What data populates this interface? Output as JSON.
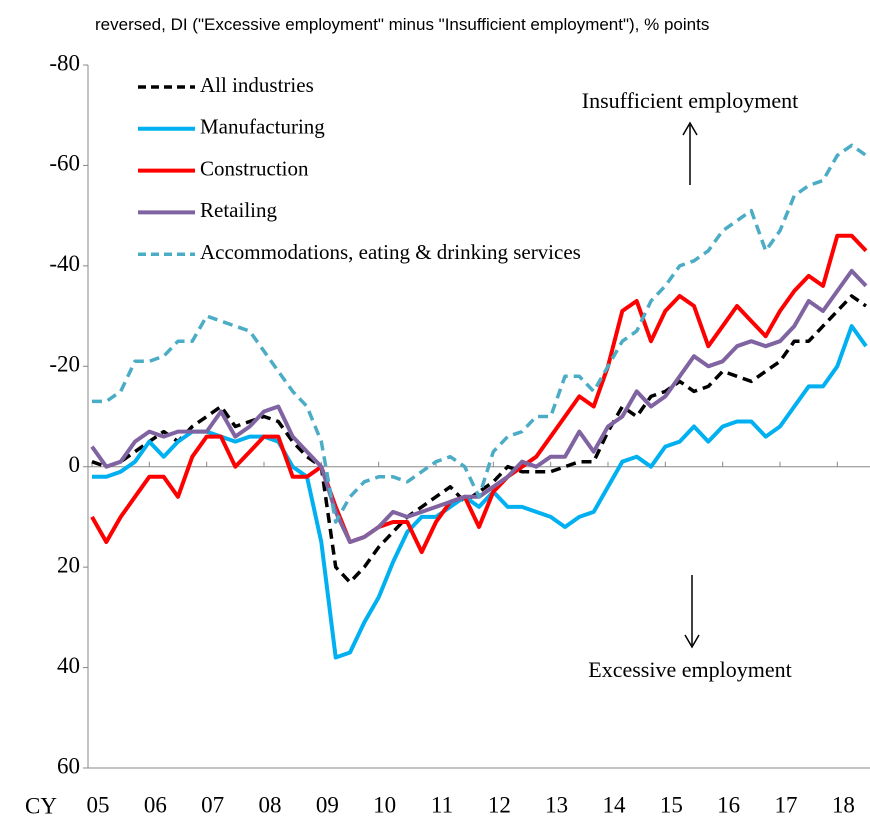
{
  "chart_data": {
    "type": "line",
    "subtitle": "reversed, DI (\"Excessive employment\" minus \"Insufficient employment\"), % points",
    "xlabel": "CY",
    "x": [
      2005,
      2005.25,
      2005.5,
      2005.75,
      2006,
      2006.25,
      2006.5,
      2006.75,
      2007,
      2007.25,
      2007.5,
      2007.75,
      2008,
      2008.25,
      2008.5,
      2008.75,
      2009,
      2009.25,
      2009.5,
      2009.75,
      2010,
      2010.25,
      2010.5,
      2010.75,
      2011,
      2011.25,
      2011.5,
      2011.75,
      2012,
      2012.25,
      2012.5,
      2012.75,
      2013,
      2013.25,
      2013.5,
      2013.75,
      2014,
      2014.25,
      2014.5,
      2014.75,
      2015,
      2015.25,
      2015.5,
      2015.75,
      2016,
      2016.25,
      2016.5,
      2016.75,
      2017,
      2017.25,
      2017.5,
      2017.75,
      2018,
      2018.25,
      2018.5
    ],
    "xlim": [
      2005,
      2018.5
    ],
    "xticks": [
      {
        "value": 2005,
        "label": "05"
      },
      {
        "value": 2006,
        "label": "06"
      },
      {
        "value": 2007,
        "label": "07"
      },
      {
        "value": 2008,
        "label": "08"
      },
      {
        "value": 2009,
        "label": "09"
      },
      {
        "value": 2010,
        "label": "10"
      },
      {
        "value": 2011,
        "label": "11"
      },
      {
        "value": 2012,
        "label": "12"
      },
      {
        "value": 2013,
        "label": "13"
      },
      {
        "value": 2014,
        "label": "14"
      },
      {
        "value": 2015,
        "label": "15"
      },
      {
        "value": 2016,
        "label": "16"
      },
      {
        "value": 2017,
        "label": "17"
      },
      {
        "value": 2018,
        "label": "18"
      }
    ],
    "ylim": [
      -80,
      60
    ],
    "y_inverted": true,
    "yticks": [
      -80,
      -60,
      -40,
      -20,
      0,
      20,
      40,
      60
    ],
    "series": [
      {
        "name": "All industries",
        "color": "#000000",
        "dash": true,
        "values": [
          -1,
          0,
          -1,
          -3,
          -5,
          -7,
          -5,
          -8,
          -10,
          -12,
          -8,
          -9,
          -10,
          -9,
          -5,
          -2,
          0,
          20,
          23,
          20,
          16,
          13,
          10,
          8,
          6,
          4,
          7,
          5,
          3,
          0,
          1,
          1,
          1,
          0,
          -1,
          -1,
          -7,
          -12,
          -10,
          -14,
          -15,
          -17,
          -15,
          -16,
          -19,
          -18,
          -17,
          -19,
          -21,
          -25,
          -25,
          -28,
          -31,
          -34,
          -32
        ]
      },
      {
        "name": "Manufacturing",
        "color": "#00b0f0",
        "dash": false,
        "values": [
          2,
          2,
          1,
          -1,
          -5,
          -2,
          -5,
          -7,
          -7,
          -6,
          -5,
          -6,
          -6,
          -5,
          0,
          2,
          15,
          38,
          37,
          31,
          26,
          19,
          13,
          10,
          10,
          8,
          6,
          8,
          5,
          8,
          8,
          9,
          10,
          12,
          10,
          9,
          4,
          -1,
          -2,
          0,
          -4,
          -5,
          -8,
          -5,
          -8,
          -9,
          -9,
          -6,
          -8,
          -12,
          -16,
          -16,
          -20,
          -28,
          -24
        ]
      },
      {
        "name": "Construction",
        "color": "#ff0000",
        "dash": false,
        "values": [
          10,
          15,
          10,
          6,
          2,
          2,
          6,
          -2,
          -6,
          -6,
          0,
          -3,
          -6,
          -6,
          2,
          2,
          0,
          8,
          15,
          14,
          12,
          11,
          11,
          17,
          11,
          7,
          6,
          12,
          5,
          2,
          0,
          -2,
          -6,
          -10,
          -14,
          -12,
          -20,
          -31,
          -33,
          -25,
          -31,
          -34,
          -32,
          -24,
          -28,
          -32,
          -29,
          -26,
          -31,
          -35,
          -38,
          -36,
          -46,
          -46,
          -43
        ]
      },
      {
        "name": "Retailing",
        "color": "#8064a2",
        "dash": false,
        "values": [
          -4,
          0,
          -1,
          -5,
          -7,
          -6,
          -7,
          -7,
          -7,
          -11,
          -6,
          -8,
          -11,
          -12,
          -6,
          -3,
          0,
          9,
          15,
          14,
          12,
          9,
          10,
          9,
          8,
          7,
          6,
          6,
          4,
          2,
          -1,
          0,
          -2,
          -2,
          -7,
          -3,
          -8,
          -10,
          -15,
          -12,
          -14,
          -18,
          -22,
          -20,
          -21,
          -24,
          -25,
          -24,
          -25,
          -28,
          -33,
          -31,
          -35,
          -39,
          -36
        ]
      },
      {
        "name": "Accommodations, eating & drinking services",
        "color": "#4bacc6",
        "dash": true,
        "values": [
          -13,
          -13,
          -15,
          -21,
          -21,
          -22,
          -25,
          -25,
          -30,
          -29,
          -28,
          -27,
          -23,
          -19,
          -15,
          -12,
          -5,
          11,
          6,
          3,
          2,
          2,
          3,
          1,
          -1,
          -2,
          0,
          6,
          -3,
          -6,
          -7,
          -10,
          -10,
          -18,
          -18,
          -15,
          -20,
          -25,
          -27,
          -33,
          -36,
          -40,
          -41,
          -43,
          -47,
          -49,
          -51,
          -43,
          -47,
          -54,
          -56,
          -57,
          -62,
          -64,
          -62
        ]
      }
    ],
    "annotations": [
      "Insufficient employment",
      "Excessive employment"
    ],
    "legend": "upper left"
  }
}
